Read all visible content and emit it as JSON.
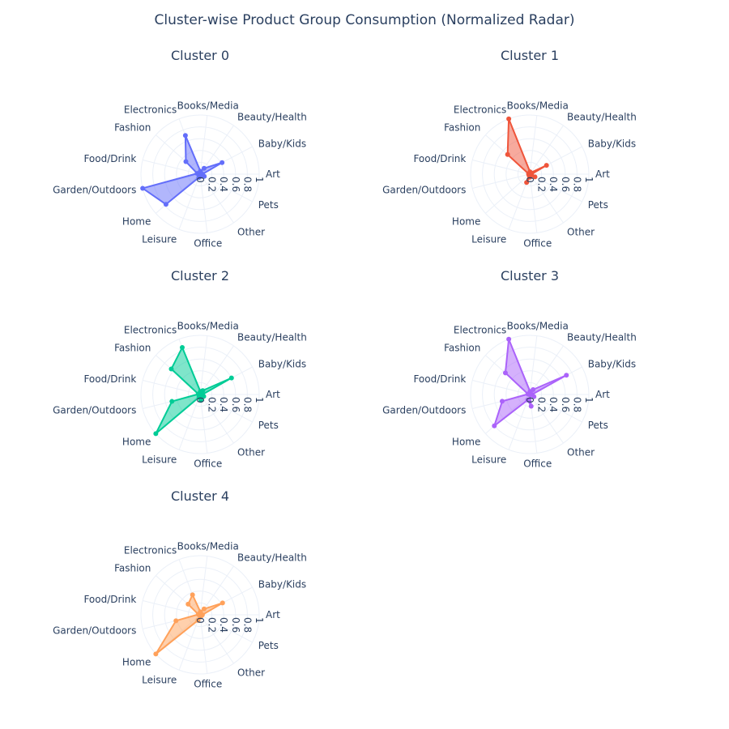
{
  "title": "Cluster-wise Product Group Consumption (Normalized Radar)",
  "chart_data": {
    "type": "radar",
    "categories": [
      "Art",
      "Baby/Kids",
      "Beauty/Health",
      "Books/Media",
      "Electronics",
      "Fashion",
      "Food/Drink",
      "Garden/Outdoors",
      "Home",
      "Leisure",
      "Office",
      "Other",
      "Pets"
    ],
    "radial_ticks": [
      "0",
      "0.2",
      "0.4",
      "0.6",
      "0.8",
      "1"
    ],
    "radial_range": [
      0,
      1
    ],
    "panels": [
      {
        "name": "Cluster 0",
        "color": "#636efa",
        "values": [
          0.04,
          0.42,
          0.12,
          0.05,
          0.7,
          0.32,
          0.05,
          1.0,
          0.77,
          0.06,
          0.04,
          0.01,
          0.08
        ]
      },
      {
        "name": "Cluster 1",
        "color": "#ef553b",
        "values": [
          0.03,
          0.32,
          0.03,
          0.04,
          1.0,
          0.5,
          0.02,
          0.01,
          0.02,
          0.15,
          0.05,
          0.02,
          0.1
        ]
      },
      {
        "name": "Cluster 2",
        "color": "#00cc96",
        "values": [
          0.04,
          0.6,
          0.08,
          0.05,
          0.85,
          0.65,
          0.03,
          0.49,
          1.0,
          0.05,
          0.1,
          0.02,
          0.07
        ]
      },
      {
        "name": "Cluster 3",
        "color": "#ab63fa",
        "values": [
          0.04,
          0.7,
          0.1,
          0.05,
          1.0,
          0.55,
          0.03,
          0.48,
          0.8,
          0.1,
          0.2,
          0.01,
          0.08
        ]
      },
      {
        "name": "Cluster 4",
        "color": "#ffa15a",
        "values": [
          0.04,
          0.43,
          0.12,
          0.05,
          0.36,
          0.27,
          0.03,
          0.42,
          1.0,
          0.1,
          0.04,
          0.01,
          0.03
        ]
      }
    ]
  }
}
